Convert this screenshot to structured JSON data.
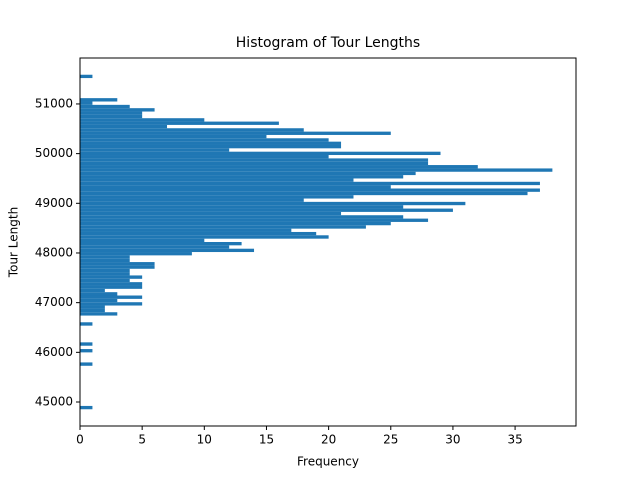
{
  "chart_data": {
    "type": "histogram",
    "orientation": "horizontal",
    "title": "Histogram of Tour Lengths",
    "x_label": "Frequency",
    "y_label": "Tour Length",
    "color": "#1f77b4",
    "bins": [
      44854,
      44921,
      44989,
      45056,
      45123,
      45191,
      45258,
      45325,
      45393,
      45460,
      45527,
      45595,
      45662,
      45729,
      45797,
      45864,
      45931,
      45999,
      46066,
      46133,
      46201,
      46268,
      46335,
      46403,
      46470,
      46537,
      46605,
      46672,
      46740,
      46807,
      46874,
      46942,
      47009,
      47076,
      47144,
      47211,
      47278,
      47346,
      47413,
      47480,
      47548,
      47615,
      47682,
      47750,
      47817,
      47884,
      47952,
      48019,
      48086,
      48154,
      48221,
      48288,
      48356,
      48423,
      48490,
      48558,
      48625,
      48692,
      48760,
      48827,
      48894,
      48962,
      49029,
      49096,
      49164,
      49231,
      49298,
      49366,
      49433,
      49500,
      49568,
      49635,
      49702,
      49770,
      49837,
      49904,
      49972,
      50039,
      50107,
      50174,
      50241,
      50309,
      50376,
      50443,
      50511,
      50578,
      50645,
      50713,
      50780,
      50847,
      50915,
      50982,
      51049,
      51117,
      51184,
      51251,
      51319,
      51386,
      51453,
      51521,
      51588
    ],
    "counts": [
      1,
      0,
      0,
      0,
      0,
      0,
      0,
      0,
      0,
      0,
      0,
      0,
      0,
      1,
      0,
      0,
      0,
      1,
      0,
      1,
      0,
      0,
      0,
      0,
      0,
      1,
      0,
      0,
      3,
      2,
      2,
      5,
      3,
      5,
      3,
      2,
      5,
      5,
      4,
      5,
      4,
      4,
      6,
      6,
      4,
      4,
      9,
      14,
      12,
      13,
      10,
      20,
      19,
      17,
      23,
      25,
      28,
      26,
      21,
      30,
      26,
      31,
      18,
      22,
      36,
      37,
      25,
      37,
      22,
      26,
      27,
      38,
      32,
      28,
      28,
      20,
      29,
      12,
      21,
      21,
      20,
      15,
      25,
      18,
      7,
      16,
      10,
      5,
      5,
      6,
      4,
      1,
      3,
      0,
      0,
      0,
      0,
      0,
      0,
      1
    ],
    "xlim": [
      0,
      39.9
    ],
    "xticks": [
      0,
      5,
      10,
      15,
      20,
      25,
      30,
      35
    ],
    "ylim": [
      44517,
      51925
    ],
    "yticks": [
      45000,
      46000,
      47000,
      48000,
      49000,
      50000,
      51000
    ]
  }
}
